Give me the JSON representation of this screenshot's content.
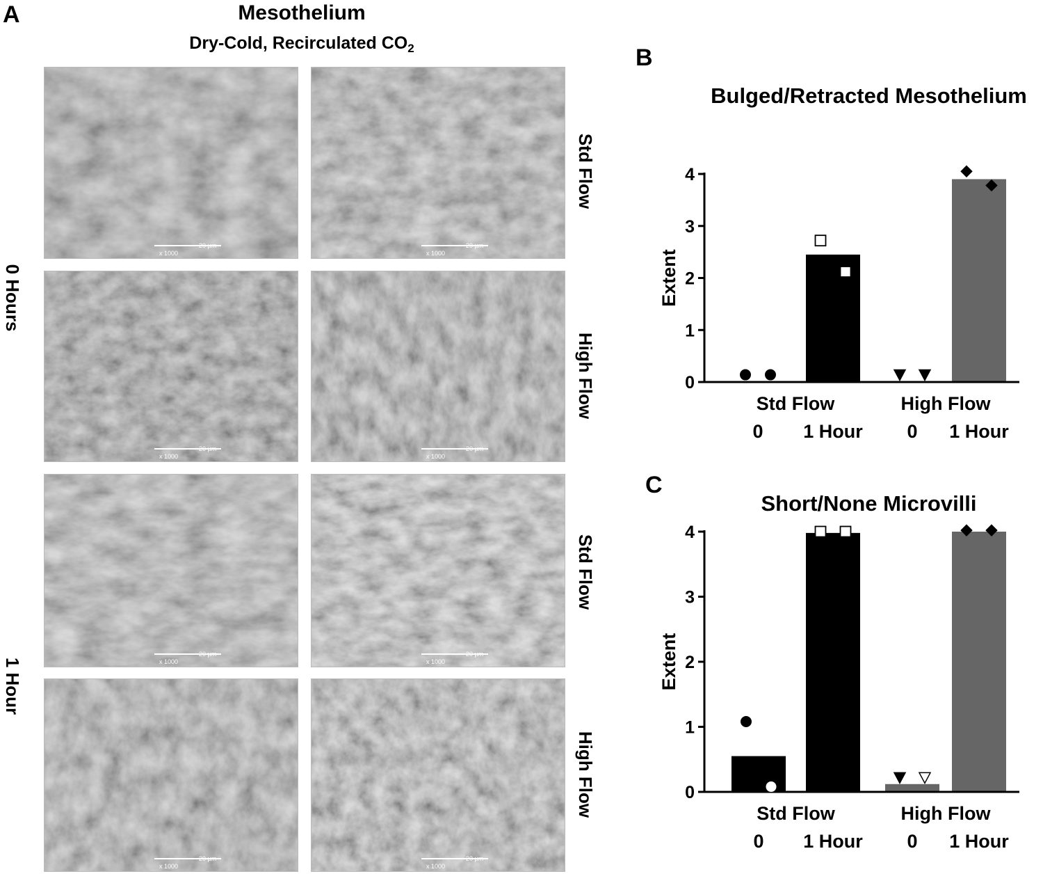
{
  "panel_a": {
    "letter": "A",
    "title": "Mesothelium",
    "subtitle_main": "Dry-Cold, Recirculated CO",
    "subtitle_sub": "2",
    "row_labels": [
      "0 Hours",
      "1 Hour"
    ],
    "side_labels": [
      "Std Flow",
      "High Flow",
      "Std Flow",
      "High Flow"
    ],
    "scale_label": "20 µm",
    "magnification": "x 1000",
    "tiles": [
      {
        "name": "0h-std-flow-left",
        "tone": "#9a9a9a"
      },
      {
        "name": "0h-std-flow-right",
        "tone": "#a2a2a2"
      },
      {
        "name": "0h-high-flow-left",
        "tone": "#8e8e8e"
      },
      {
        "name": "0h-high-flow-right",
        "tone": "#9c9c9c"
      },
      {
        "name": "1h-std-flow-left",
        "tone": "#a6a6a6"
      },
      {
        "name": "1h-std-flow-right",
        "tone": "#b4b4b4"
      },
      {
        "name": "1h-high-flow-left",
        "tone": "#9e9e9e"
      },
      {
        "name": "1h-high-flow-right",
        "tone": "#a8a8a8"
      }
    ]
  },
  "chart_data": [
    {
      "type": "bar",
      "panel": "B",
      "title": "Bulged/Retracted Mesothelium",
      "ylabel": "Extent",
      "ylim": [
        0,
        4
      ],
      "yticks": [
        0,
        1,
        2,
        3,
        4
      ],
      "categories": [
        "0",
        "1 Hour",
        "0",
        "1 Hour"
      ],
      "groups": [
        "Std Flow",
        "High Flow"
      ],
      "values": [
        0.0,
        2.45,
        0.0,
        3.9
      ],
      "bar_colors": [
        "#000000",
        "#000000",
        "#666666",
        "#666666"
      ],
      "points": [
        {
          "category": 0,
          "y": 0.14,
          "marker": "circle",
          "fill": "#000000"
        },
        {
          "category": 0,
          "y": 0.14,
          "marker": "circle",
          "fill": "#000000"
        },
        {
          "category": 1,
          "y": 2.72,
          "marker": "square",
          "fill": "#ffffff"
        },
        {
          "category": 1,
          "y": 2.12,
          "marker": "square",
          "fill": "#ffffff"
        },
        {
          "category": 2,
          "y": 0.14,
          "marker": "triangle-down",
          "fill": "#000000"
        },
        {
          "category": 2,
          "y": 0.14,
          "marker": "triangle-down",
          "fill": "#000000"
        },
        {
          "category": 3,
          "y": 4.05,
          "marker": "diamond",
          "fill": "#000000"
        },
        {
          "category": 3,
          "y": 3.78,
          "marker": "diamond",
          "fill": "#000000"
        }
      ]
    },
    {
      "type": "bar",
      "panel": "C",
      "title": "Short/None Microvilli",
      "ylabel": "Extent",
      "ylim": [
        0,
        4
      ],
      "yticks": [
        0,
        1,
        2,
        3,
        4
      ],
      "categories": [
        "0",
        "1 Hour",
        "0",
        "1 Hour"
      ],
      "groups": [
        "Std Flow",
        "High Flow"
      ],
      "values": [
        0.55,
        3.98,
        0.12,
        4.0
      ],
      "bar_colors": [
        "#000000",
        "#000000",
        "#666666",
        "#666666"
      ],
      "points": [
        {
          "category": 0,
          "y": 1.08,
          "marker": "circle",
          "fill": "#000000"
        },
        {
          "category": 0,
          "y": 0.08,
          "marker": "circle",
          "fill": "#ffffff"
        },
        {
          "category": 1,
          "y": 4.0,
          "marker": "square",
          "fill": "#ffffff"
        },
        {
          "category": 1,
          "y": 4.0,
          "marker": "square",
          "fill": "#ffffff"
        },
        {
          "category": 2,
          "y": 0.22,
          "marker": "triangle-down",
          "fill": "#000000"
        },
        {
          "category": 2,
          "y": 0.22,
          "marker": "triangle-down",
          "fill": "#ffffff"
        },
        {
          "category": 3,
          "y": 4.02,
          "marker": "diamond",
          "fill": "#000000"
        },
        {
          "category": 3,
          "y": 4.02,
          "marker": "diamond",
          "fill": "#000000"
        }
      ]
    }
  ]
}
